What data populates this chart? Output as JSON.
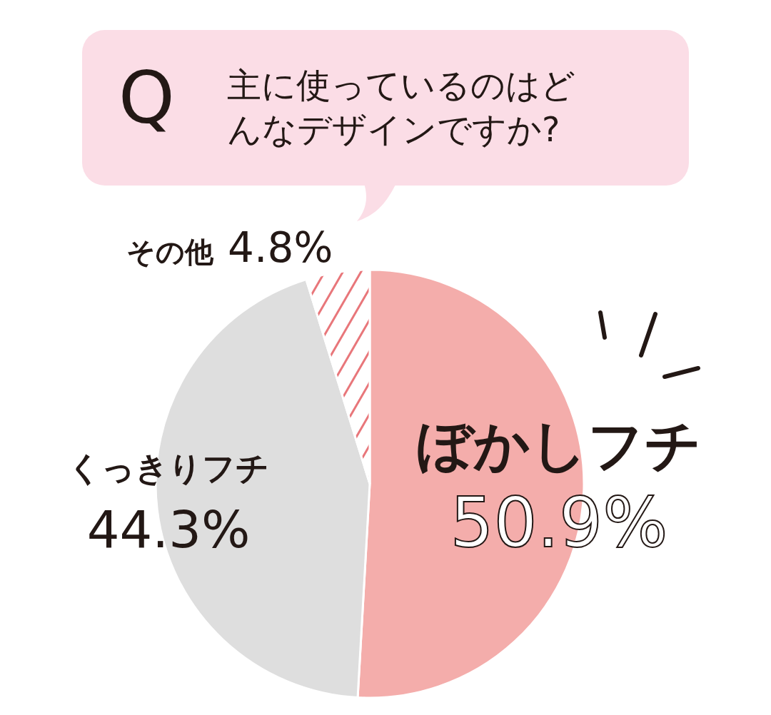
{
  "chart_data": {
    "type": "pie",
    "title": "主に使っているのはどんなデザインですか?",
    "annotations": [
      "Q"
    ],
    "categories": [
      "ぼかしフチ",
      "くっきりフチ",
      "その他"
    ],
    "values": [
      50.9,
      44.3,
      4.8
    ],
    "value_labels": [
      "50.9%",
      "44.3%",
      "4.8%"
    ],
    "colors": [
      "#f4adab",
      "#dedede",
      "#ffffff"
    ],
    "legend": false
  }
}
